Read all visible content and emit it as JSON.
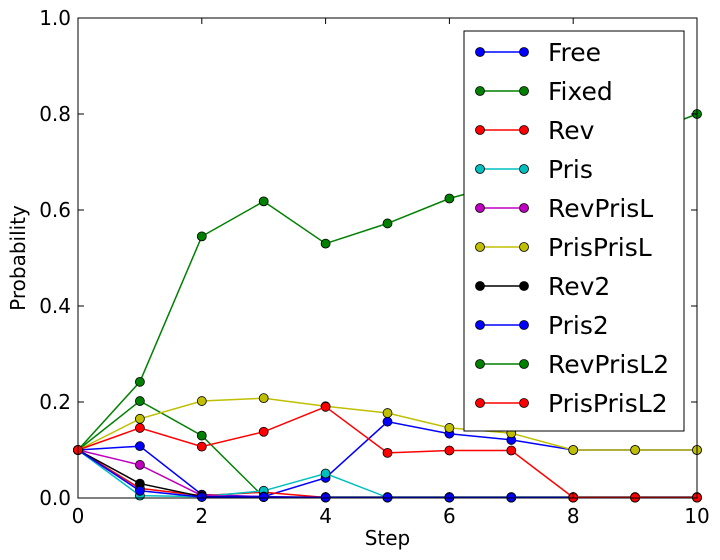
{
  "chart_data": {
    "type": "line",
    "title": "",
    "xlabel": "Step",
    "ylabel": "Probability",
    "xlim": [
      0,
      10
    ],
    "ylim": [
      0,
      1.0
    ],
    "x_ticks": [
      "0",
      "2",
      "4",
      "6",
      "8",
      "10"
    ],
    "y_ticks": [
      "0.0",
      "0.2",
      "0.4",
      "0.6",
      "0.8",
      "1.0"
    ],
    "grid": false,
    "legend_position": "top-right",
    "x": [
      0,
      1,
      2,
      3,
      4,
      5,
      6,
      7,
      8,
      9,
      10
    ],
    "series": [
      {
        "name": "Free",
        "color": "#0000ff",
        "values": [
          0.1,
          0.108,
          0.007,
          0.003,
          0.042,
          0.159,
          0.134,
          0.121,
          0.1,
          0.1,
          0.1
        ]
      },
      {
        "name": "Fixed",
        "color": "#008000",
        "values": [
          0.1,
          0.202,
          0.13,
          0.002,
          0.002,
          0.002,
          0.002,
          0.002,
          0.002,
          0.002,
          0.002
        ]
      },
      {
        "name": "Rev",
        "color": "#ff0000",
        "values": [
          0.1,
          0.02,
          0.005,
          0.012,
          0.001,
          0.001,
          0.001,
          0.001,
          0.001,
          0.001,
          0.001
        ]
      },
      {
        "name": "Pris",
        "color": "#00bfbf",
        "values": [
          0.1,
          0.005,
          0.003,
          0.015,
          0.051,
          0.001,
          0.001,
          0.001,
          0.001,
          0.001,
          0.001
        ]
      },
      {
        "name": "RevPrisL",
        "color": "#bf00bf",
        "values": [
          0.1,
          0.069,
          0.005,
          0.003,
          0.001,
          0.001,
          0.001,
          0.001,
          0.001,
          0.001,
          0.001
        ]
      },
      {
        "name": "PrisPrisL",
        "color": "#bfbf00",
        "values": [
          0.1,
          0.165,
          0.202,
          0.208,
          0.191,
          0.177,
          0.146,
          0.135,
          0.1,
          0.1,
          0.1
        ]
      },
      {
        "name": "Rev2",
        "color": "#000000",
        "values": [
          0.1,
          0.03,
          0.003,
          0.002,
          0.001,
          0.001,
          0.001,
          0.001,
          0.001,
          0.001,
          0.001
        ]
      },
      {
        "name": "Pris2",
        "color": "#0000ff",
        "values": [
          0.1,
          0.015,
          0.002,
          0.002,
          0.001,
          0.001,
          0.001,
          0.001,
          0.001,
          0.001,
          0.001
        ]
      },
      {
        "name": "RevPrisL2",
        "color": "#008000",
        "values": [
          0.1,
          0.242,
          0.545,
          0.618,
          0.53,
          0.572,
          0.624,
          0.66,
          0.7,
          0.75,
          0.8
        ]
      },
      {
        "name": "PrisPrisL2",
        "color": "#ff0000",
        "values": [
          0.1,
          0.146,
          0.107,
          0.138,
          0.19,
          0.094,
          0.099,
          0.099,
          0.001,
          0.001,
          0.001
        ]
      }
    ]
  }
}
